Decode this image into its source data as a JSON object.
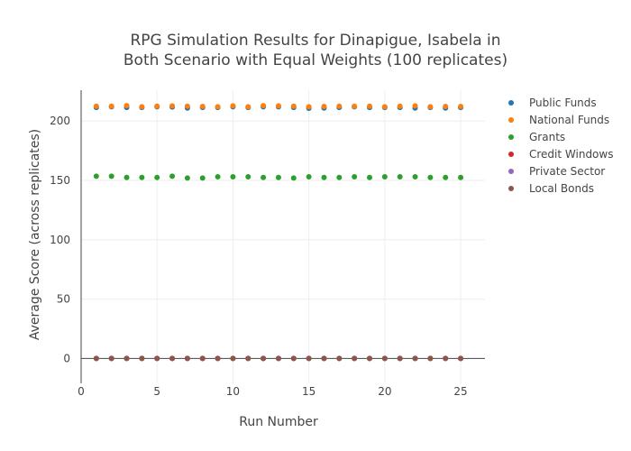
{
  "chart_data": {
    "type": "scatter",
    "title": "RPG Simulation Results for Dinapigue, Isabela in Both Scenario with Equal Weights (100 replicates)",
    "title_lines": [
      "RPG Simulation Results for Dinapigue, Isabela in",
      "Both Scenario with Equal Weights (100 replicates)"
    ],
    "xlabel": "Run Number",
    "ylabel": "Average Score (across replicates)",
    "xlim": [
      0,
      26.6
    ],
    "ylim": [
      -21,
      226
    ],
    "x_ticks": [
      0,
      5,
      10,
      15,
      20,
      25
    ],
    "y_ticks": [
      0,
      50,
      100,
      150,
      200
    ],
    "grid": true,
    "legend_position": "right",
    "x": [
      1,
      2,
      3,
      4,
      5,
      6,
      7,
      8,
      9,
      10,
      11,
      12,
      13,
      14,
      15,
      16,
      17,
      18,
      19,
      20,
      21,
      22,
      23,
      24,
      25
    ],
    "series": [
      {
        "name": "Public Funds",
        "color": "#1f77b4",
        "values": [
          211.5,
          212.0,
          211.5,
          211.5,
          212.0,
          211.8,
          211.0,
          211.5,
          211.5,
          212.0,
          211.5,
          212.0,
          212.0,
          211.5,
          210.8,
          211.0,
          211.5,
          212.0,
          211.5,
          211.5,
          211.5,
          211.0,
          211.5,
          211.0,
          211.5
        ]
      },
      {
        "name": "National Funds",
        "color": "#ff7f0e",
        "values": [
          212.5,
          212.5,
          213.0,
          212.0,
          212.5,
          212.8,
          212.5,
          212.3,
          212.0,
          212.8,
          212.0,
          213.0,
          212.8,
          212.5,
          212.0,
          212.3,
          212.5,
          212.5,
          212.5,
          212.0,
          212.5,
          212.8,
          212.0,
          212.3,
          212.3
        ]
      },
      {
        "name": "Grants",
        "color": "#2ca02c",
        "values": [
          153.5,
          153.5,
          152.5,
          152.5,
          152.5,
          153.5,
          152.0,
          152.0,
          153.0,
          153.0,
          153.0,
          152.5,
          152.5,
          152.0,
          153.0,
          152.5,
          152.5,
          153.0,
          152.5,
          153.0,
          153.0,
          153.0,
          152.5,
          152.5,
          152.5
        ]
      },
      {
        "name": "Credit Windows",
        "color": "#d62728",
        "values": [
          0,
          0,
          0,
          0,
          0,
          0,
          0,
          0,
          0,
          0,
          0,
          0,
          0,
          0,
          0,
          0,
          0,
          0,
          0,
          0,
          0,
          0,
          0,
          0,
          0
        ]
      },
      {
        "name": "Private Sector",
        "color": "#9467bd",
        "values": [
          0,
          0,
          0,
          0,
          0,
          0,
          0,
          0,
          0,
          0,
          0,
          0,
          0,
          0,
          0,
          0,
          0,
          0,
          0,
          0,
          0,
          0,
          0,
          0,
          0
        ]
      },
      {
        "name": "Local Bonds",
        "color": "#8c564b",
        "values": [
          0,
          0,
          0,
          0,
          0,
          0,
          0,
          0,
          0,
          0,
          0,
          0,
          0,
          0,
          0,
          0,
          0,
          0,
          0,
          0,
          0,
          0,
          0,
          0,
          0
        ]
      }
    ]
  }
}
